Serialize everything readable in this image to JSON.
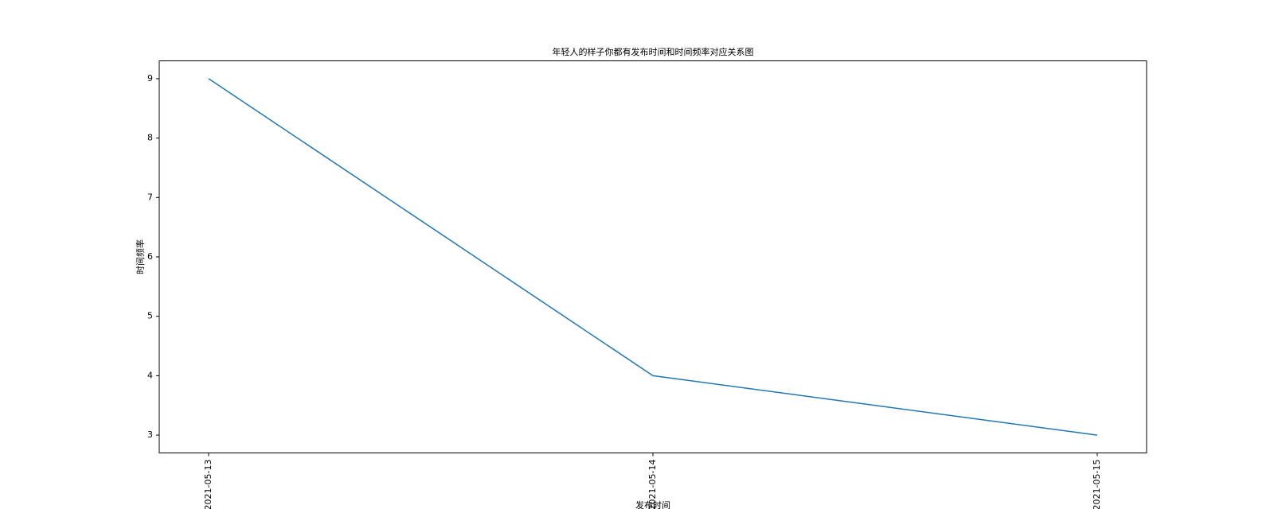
{
  "chart_data": {
    "type": "line",
    "title": "年轻人的样子你都有发布时间和时间频率对应关系图",
    "x_label": "发布时间",
    "y_label": "时间频率",
    "categories": [
      "2021-05-13",
      "2021-05-14",
      "2021-05-15"
    ],
    "values": [
      9,
      4,
      3
    ],
    "color": "#1f77b4",
    "ylim": [
      2.7,
      9.3
    ],
    "yticks": [
      3,
      4,
      5,
      6,
      7,
      8,
      9
    ],
    "grid": false
  }
}
